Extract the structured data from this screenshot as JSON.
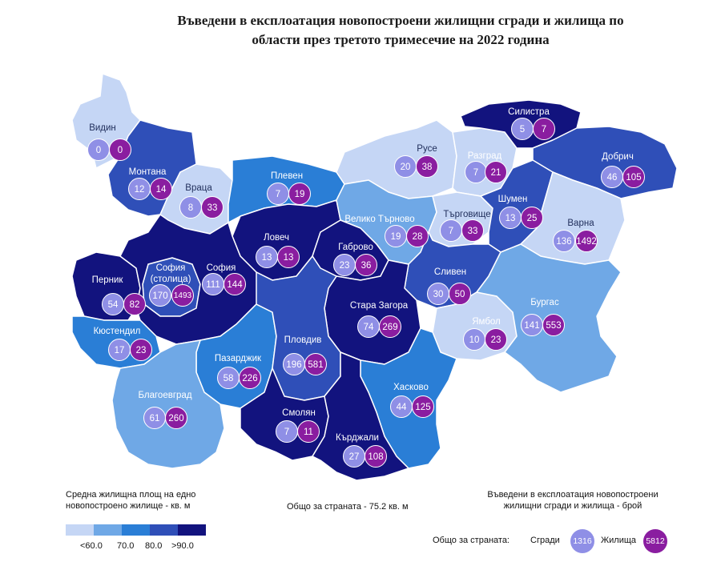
{
  "title_line1": "Въведени в експлоатация новопостроени жилищни сгради и жилища по",
  "title_line2": "области през третото тримесечие на 2022 година",
  "legend": {
    "title_line1": "Средна жилищна площ на едно",
    "title_line2": "новопостроено жилище - кв. м",
    "classes": [
      "#c5d6f5",
      "#6fa8e6",
      "#2a7ed6",
      "#2f4fb8",
      "#12137e"
    ],
    "ticks": [
      "<60.0",
      "70.0",
      "80.0",
      ">90.0"
    ]
  },
  "country_avg_area": "Общо за страната - 75.2 кв. м",
  "right_legend": {
    "title_line1": "Въведени в експлоатация новопостроени",
    "title_line2": "жилищни сгради и жилища - брой",
    "totals_label": "Общо за страната:",
    "buildings_label": "Сгради",
    "buildings_total": "1316",
    "dwellings_label": "Жилища",
    "dwellings_total": "5812"
  },
  "regions": [
    {
      "name": "Видин",
      "buildings": "0",
      "dwellings": "0",
      "area_class": 1
    },
    {
      "name": "Монтана",
      "buildings": "12",
      "dwellings": "14",
      "area_class": 4
    },
    {
      "name": "Враца",
      "buildings": "8",
      "dwellings": "33",
      "area_class": 1
    },
    {
      "name": "Плевен",
      "buildings": "7",
      "dwellings": "19",
      "area_class": 3
    },
    {
      "name": "Русе",
      "buildings": "20",
      "dwellings": "38",
      "area_class": 1
    },
    {
      "name": "Разград",
      "buildings": "7",
      "dwellings": "21",
      "area_class": 1
    },
    {
      "name": "Силистра",
      "buildings": "5",
      "dwellings": "7",
      "area_class": 5
    },
    {
      "name": "Добрич",
      "buildings": "46",
      "dwellings": "105",
      "area_class": 4
    },
    {
      "name": "Ловеч",
      "buildings": "13",
      "dwellings": "13",
      "area_class": 5
    },
    {
      "name": "Велико Търново",
      "buildings": "19",
      "dwellings": "28",
      "area_class": 2
    },
    {
      "name": "Търговище",
      "buildings": "7",
      "dwellings": "33",
      "area_class": 1
    },
    {
      "name": "Шумен",
      "buildings": "13",
      "dwellings": "25",
      "area_class": 4
    },
    {
      "name": "Варна",
      "buildings": "136",
      "dwellings": "1492",
      "area_class": 1
    },
    {
      "name": "Габрово",
      "buildings": "23",
      "dwellings": "36",
      "area_class": 5
    },
    {
      "name": "Перник",
      "buildings": "54",
      "dwellings": "82",
      "area_class": 5
    },
    {
      "name": "София (столица)",
      "buildings": "170",
      "dwellings": "1493",
      "area_class": 4
    },
    {
      "name": "София",
      "buildings": "111",
      "dwellings": "144",
      "area_class": 5
    },
    {
      "name": "Сливен",
      "buildings": "30",
      "dwellings": "50",
      "area_class": 4
    },
    {
      "name": "Кюстендил",
      "buildings": "17",
      "dwellings": "23",
      "area_class": 3
    },
    {
      "name": "Стара Загора",
      "buildings": "74",
      "dwellings": "269",
      "area_class": 5
    },
    {
      "name": "Ямбол",
      "buildings": "10",
      "dwellings": "23",
      "area_class": 1
    },
    {
      "name": "Бургас",
      "buildings": "141",
      "dwellings": "553",
      "area_class": 2
    },
    {
      "name": "Пазарджик",
      "buildings": "58",
      "dwellings": "226",
      "area_class": 3
    },
    {
      "name": "Пловдив",
      "buildings": "196",
      "dwellings": "581",
      "area_class": 4
    },
    {
      "name": "Благоевград",
      "buildings": "61",
      "dwellings": "260",
      "area_class": 2
    },
    {
      "name": "Хасково",
      "buildings": "44",
      "dwellings": "125",
      "area_class": 3
    },
    {
      "name": "Смолян",
      "buildings": "7",
      "dwellings": "11",
      "area_class": 5
    },
    {
      "name": "Кърджали",
      "buildings": "27",
      "dwellings": "108",
      "area_class": 5
    }
  ]
}
